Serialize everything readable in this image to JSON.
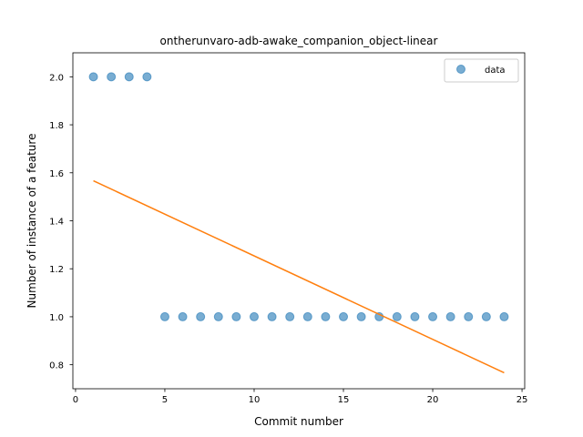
{
  "chart_data": {
    "type": "scatter",
    "title": "ontherunvaro-adb-awake_companion_object-linear",
    "xlabel": "Commit number",
    "ylabel": "Number of instance of a feature",
    "xlim": [
      -0.15,
      25.15
    ],
    "ylim": [
      0.7,
      2.1
    ],
    "xticks": [
      0,
      5,
      10,
      15,
      20,
      25
    ],
    "yticks": [
      0.8,
      1.0,
      1.2,
      1.4,
      1.6,
      1.8,
      2.0
    ],
    "xtick_labels": [
      "0",
      "5",
      "10",
      "15",
      "20",
      "25"
    ],
    "ytick_labels": [
      "0.8",
      "1.0",
      "1.2",
      "1.4",
      "1.6",
      "1.8",
      "2.0"
    ],
    "grid": false,
    "legend_position": "top-right",
    "series": [
      {
        "name": "data",
        "kind": "scatter",
        "color": "#1f77b4",
        "x": [
          1,
          2,
          3,
          4,
          5,
          6,
          7,
          8,
          9,
          10,
          11,
          12,
          13,
          14,
          15,
          16,
          17,
          18,
          19,
          20,
          21,
          22,
          23,
          24
        ],
        "y": [
          2,
          2,
          2,
          2,
          1,
          1,
          1,
          1,
          1,
          1,
          1,
          1,
          1,
          1,
          1,
          1,
          1,
          1,
          1,
          1,
          1,
          1,
          1,
          1
        ]
      },
      {
        "kind": "line",
        "color": "#ff7f0e",
        "x": [
          1,
          24
        ],
        "y": [
          1.5667,
          0.7667
        ]
      }
    ],
    "legend": [
      {
        "label": "data",
        "marker": "circle",
        "color": "#1f77b4"
      }
    ]
  }
}
